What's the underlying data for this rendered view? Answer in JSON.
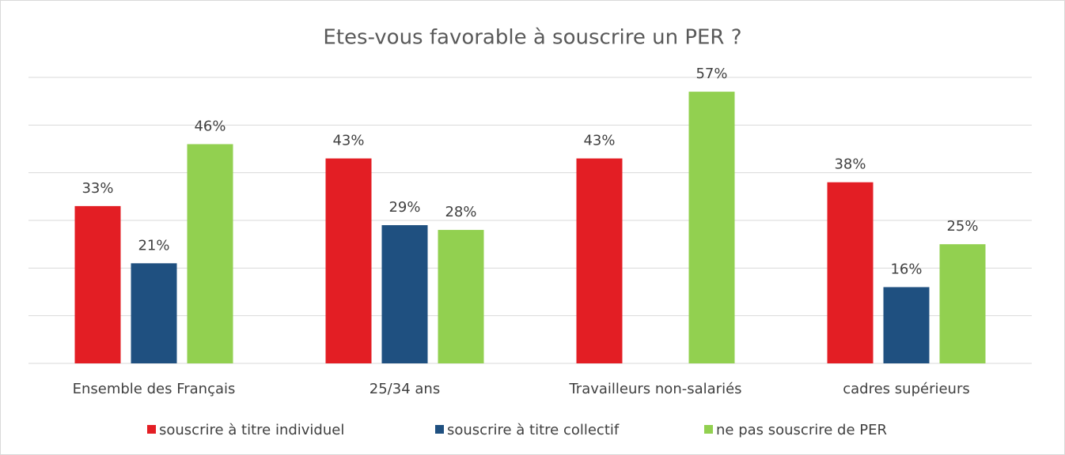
{
  "chart_data": {
    "type": "bar",
    "title": "Etes-vous favorable à souscrire un PER ?",
    "categories": [
      "Ensemble des Français",
      "25/34 ans",
      "Travailleurs non-salariés",
      "cadres supérieurs"
    ],
    "series": [
      {
        "name": "souscrire à titre individuel",
        "color": "#e31e24",
        "values": [
          33,
          43,
          43,
          38
        ],
        "value_labels": [
          "33%",
          "43%",
          "43%",
          "38%"
        ]
      },
      {
        "name": "souscrire à titre collectif",
        "color": "#1f5080",
        "values": [
          21,
          29,
          null,
          16
        ],
        "value_labels": [
          "21%",
          "29%",
          null,
          "16%"
        ]
      },
      {
        "name": "ne pas souscrire de PER",
        "color": "#92d050",
        "values": [
          46,
          28,
          57,
          25
        ],
        "value_labels": [
          "46%",
          "28%",
          "57%",
          "25%"
        ]
      }
    ],
    "ylim": [
      0,
      60
    ],
    "yticks": [
      0,
      10,
      20,
      30,
      40,
      50,
      60
    ],
    "grid": true,
    "legend": "bottom"
  }
}
